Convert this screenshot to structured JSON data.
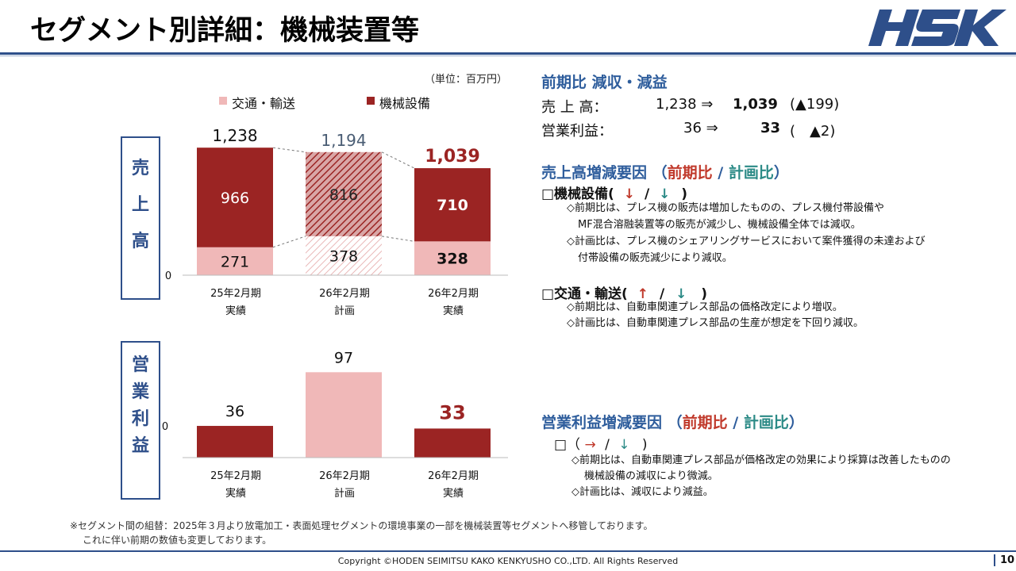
{
  "header": {
    "title": "セグメント別詳細：機械装置等",
    "logo_text": "HSK"
  },
  "side_labels": {
    "sales": [
      "売",
      "上",
      "高"
    ],
    "profit": [
      "営",
      "業",
      "利",
      "益"
    ]
  },
  "unit_label": "（単位：百万円）",
  "legend": [
    {
      "label": "交通・輸送",
      "color": "#f0b8b8"
    },
    {
      "label": "機械設備",
      "color": "#9b2423"
    }
  ],
  "chart_data": [
    {
      "type": "bar",
      "stacked": true,
      "title": "売上高",
      "categories": [
        "25年2月期\n実績",
        "26年2月期\n計画",
        "26年2月期\n実績"
      ],
      "category_lines": [
        [
          "25年2月期",
          "実績"
        ],
        [
          "26年2月期",
          "計画"
        ],
        [
          "26年2月期",
          "実績"
        ]
      ],
      "series": [
        {
          "name": "交通・輸送",
          "values": [
            271,
            378,
            328
          ],
          "labels": [
            "271",
            "378",
            "328"
          ]
        },
        {
          "name": "機械設備",
          "values": [
            966,
            816,
            710
          ],
          "labels": [
            "966",
            "816",
            "710"
          ]
        }
      ],
      "totals": [
        1238,
        1194,
        1039
      ],
      "total_labels": [
        "1,238",
        "1,194",
        "1,039"
      ],
      "zero_label": "0",
      "ylim": [
        0,
        1300
      ]
    },
    {
      "type": "bar",
      "title": "営業利益",
      "categories": [
        "25年2月期\n実績",
        "26年2月期\n計画",
        "26年2月期\n実績"
      ],
      "category_lines": [
        [
          "25年2月期",
          "実績"
        ],
        [
          "26年2月期",
          "計画"
        ],
        [
          "26年2月期",
          "実績"
        ]
      ],
      "values": [
        36,
        97,
        33
      ],
      "value_labels": [
        "36",
        "97",
        "33"
      ],
      "zero_label": "0",
      "ylim": [
        0,
        100
      ]
    }
  ],
  "right": {
    "yoy_heading": "前期比 減収・減益",
    "sales_row": {
      "label": "売 上 高：",
      "prev": "1,238 ⇒",
      "curr": "1,039",
      "diff": "(▲199)"
    },
    "profit_row": {
      "label": "営業利益：",
      "prev": "36 ⇒",
      "curr": "33",
      "diff": "(　▲2)"
    },
    "sales_factors_heading": "売上高増減要因",
    "paren_open": "（",
    "paren_close": "）",
    "slash": "/",
    "yoy": "前期比",
    "plan": "計画比",
    "machine": {
      "heading": "□機械設備(",
      "arrow1": "↓",
      "arrow2": "↓",
      "close": ")",
      "notes": [
        "◇前期比は、プレス機の販売は増加したものの、プレス機付帯設備や",
        "MF混合溶融装置等の販売が減少し、機械設備全体では減収。",
        "◇計画比は、プレス機のシェアリングサービスにおいて案件獲得の未達および",
        "付帯設備の販売減少により減収。"
      ]
    },
    "transport": {
      "heading": "□交通・輸送(",
      "arrow1": "↑",
      "arrow2": "↓",
      "close": ")",
      "notes": [
        "◇前期比は、自動車関連プレス部品の価格改定により増収。",
        "◇計画比は、自動車関連プレス部品の生産が想定を下回り減収。"
      ]
    },
    "profit_factors_heading": "営業利益増減要因",
    "profit": {
      "heading": "□（",
      "arrow1": "→",
      "arrow2": "↓",
      "close": ")",
      "notes": [
        "◇前期比は、自動車関連プレス部品が価格改定の効果により採算は改善したものの",
        "機械設備の減収により微減。",
        "◇計画比は、減収により減益。"
      ]
    }
  },
  "footnote": [
    "※セグメント間の組替：2025年３月より放電加工・表面処理セグメントの環境事業の一部を機械装置等セグメントへ移管しております。",
    "これに伴い前期の数値も変更しております。"
  ],
  "footer": {
    "copyright": "Copyright ©HODEN SEIMITSU KAKO KENKYUSHO CO.,LTD. All Rights Reserved",
    "page": "10"
  },
  "colors": {
    "brand": "#2e4f8a",
    "machine": "#9b2423",
    "transport": "#f0b8b8",
    "accent_red": "#c0392b",
    "teal": "#2b8a86"
  }
}
